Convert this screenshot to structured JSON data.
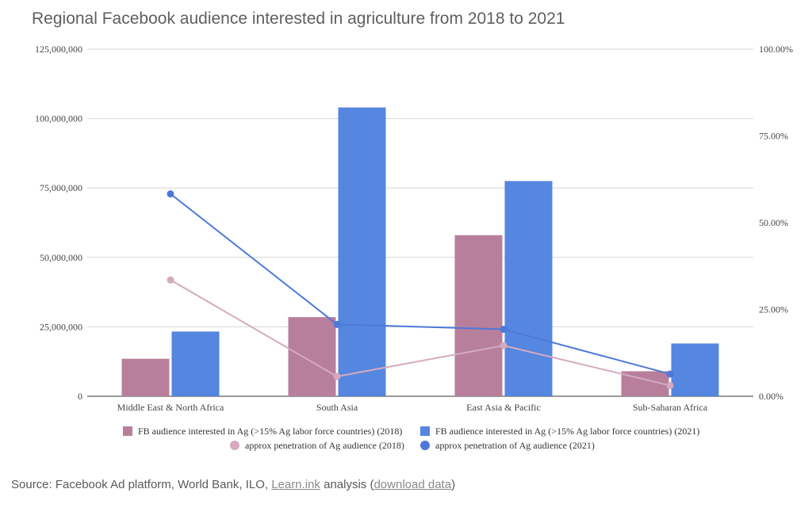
{
  "title": "Regional Facebook audience interested in agriculture from 2018 to 2021",
  "source": {
    "prefix": "Source: Facebook Ad platform, World Bank, ILO, ",
    "link1": "Learn.ink",
    "middle": " analysis (",
    "link2": "download data",
    "suffix": ")"
  },
  "chart_data": {
    "type": "bar",
    "categories": [
      "Middle East & North Africa",
      "South Asia",
      "East Asia & Pacific",
      "Sub-Saharan Africa"
    ],
    "bar_series": [
      {
        "name": "FB audience interested in Ag (>15% Ag labor force countries) (2018)",
        "values": [
          13500000,
          28500000,
          58000000,
          9000000
        ],
        "color": "#b87f9c"
      },
      {
        "name": "FB audience interested in Ag (>15% Ag labor force countries) (2021)",
        "values": [
          23300000,
          104000000,
          77500000,
          19000000
        ],
        "color": "#5586e0"
      }
    ],
    "line_series": [
      {
        "name": "approx penetration of Ag audience (2018)",
        "values": [
          33.5,
          5.7,
          14.6,
          3.1
        ],
        "color": "#d4aabf"
      },
      {
        "name": "approx penetration of Ag audience (2021)",
        "values": [
          58.3,
          20.7,
          19.3,
          6.4
        ],
        "color": "#4d78d8"
      }
    ],
    "y_left": {
      "min": 0,
      "max": 125000000,
      "ticks": [
        "0",
        "25,000,000",
        "50,000,000",
        "75,000,000",
        "100,000,000",
        "125,000,000"
      ]
    },
    "y_right": {
      "min": 0,
      "max": 100,
      "ticks": [
        "0.00%",
        "25.00%",
        "50.00%",
        "75.00%",
        "100.00%"
      ]
    },
    "grid": true,
    "legend_position": "bottom"
  }
}
